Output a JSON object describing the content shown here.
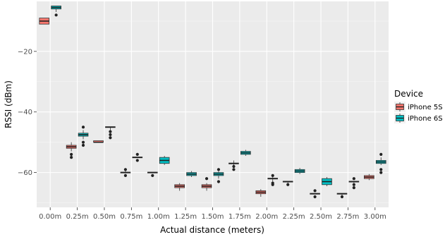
{
  "chart_data": {
    "type": "box",
    "xlabel": "Actual distance (meters)",
    "ylabel": "RSSI (dBm)",
    "categories": [
      "0.00m",
      "0.25m",
      "0.50m",
      "0.75m",
      "1.00m",
      "1.25m",
      "1.50m",
      "1.75m",
      "2.00m",
      "2.25m",
      "2.50m",
      "2.75m",
      "3.00m"
    ],
    "ylim": [
      -71.5,
      -3.5
    ],
    "yticks": [
      -20,
      -40,
      -60
    ],
    "ytick_labels": [
      "−20",
      "−40",
      "−60"
    ],
    "grid": true,
    "legend": {
      "title": "Device",
      "position": "right",
      "entries": [
        "iPhone 5S",
        "iPhone 6S"
      ]
    },
    "colors": {
      "iPhone 5S": "#F8766D",
      "iPhone 6S": "#00BFC4",
      "panel": "#EBEBEB",
      "grid_major": "#FFFFFF"
    },
    "series": [
      {
        "name": "iPhone 5S",
        "boxes": [
          {
            "q1": -11,
            "median": -10,
            "q3": -9,
            "whisker_low": -11,
            "whisker_high": -9,
            "outliers": []
          },
          {
            "q1": -52,
            "median": -51.5,
            "q3": -51,
            "whisker_low": -53,
            "whisker_high": -50,
            "outliers": [
              -54,
              -55
            ]
          },
          {
            "q1": -50,
            "median": -50,
            "q3": -49.5,
            "whisker_low": -50,
            "whisker_high": -49.5,
            "outliers": []
          },
          {
            "q1": -60,
            "median": -60,
            "q3": -60,
            "whisker_low": -60,
            "whisker_high": -59,
            "outliers": [
              -59,
              -61
            ]
          },
          {
            "q1": -60,
            "median": -60,
            "q3": -60,
            "whisker_low": -60,
            "whisker_high": -60,
            "outliers": [
              -61
            ]
          },
          {
            "q1": -65,
            "median": -64.5,
            "q3": -64,
            "whisker_low": -66,
            "whisker_high": -63.5,
            "outliers": []
          },
          {
            "q1": -65,
            "median": -64.5,
            "q3": -64,
            "whisker_low": -66,
            "whisker_high": -63.5,
            "outliers": [
              -62
            ]
          },
          {
            "q1": -57,
            "median": -57,
            "q3": -57,
            "whisker_low": -58,
            "whisker_high": -56,
            "outliers": [
              -58,
              -59
            ]
          },
          {
            "q1": -67,
            "median": -66.5,
            "q3": -66,
            "whisker_low": -68,
            "whisker_high": -65.5,
            "outliers": []
          },
          {
            "q1": -63,
            "median": -63,
            "q3": -63,
            "whisker_low": -64,
            "whisker_high": -63,
            "outliers": [
              -64
            ]
          },
          {
            "q1": -67,
            "median": -67,
            "q3": -67,
            "whisker_low": -67,
            "whisker_high": -67,
            "outliers": [
              -66,
              -68
            ]
          },
          {
            "q1": -67,
            "median": -67,
            "q3": -67,
            "whisker_low": -68,
            "whisker_high": -67,
            "outliers": [
              -68
            ]
          },
          {
            "q1": -62,
            "median": -61.5,
            "q3": -61,
            "whisker_low": -62.5,
            "whisker_high": -60.5,
            "outliers": []
          }
        ]
      },
      {
        "name": "iPhone 6S",
        "boxes": [
          {
            "q1": -6,
            "median": -5.5,
            "q3": -5,
            "whisker_low": -7,
            "whisker_high": -5,
            "outliers": [
              -8
            ]
          },
          {
            "q1": -48,
            "median": -47.5,
            "q3": -47,
            "whisker_low": -49,
            "whisker_high": -46,
            "outliers": [
              -45,
              -50,
              -51
            ]
          },
          {
            "q1": -45,
            "median": -45,
            "q3": -45,
            "whisker_low": -46,
            "whisker_high": -45,
            "outliers": [
              -46.5,
              -47.5,
              -48.5
            ]
          },
          {
            "q1": -55,
            "median": -55,
            "q3": -55,
            "whisker_low": -55,
            "whisker_high": -55,
            "outliers": [
              -54,
              -56
            ]
          },
          {
            "q1": -57,
            "median": -56,
            "q3": -55,
            "whisker_low": -57.5,
            "whisker_high": -54.5,
            "outliers": []
          },
          {
            "q1": -61,
            "median": -60.5,
            "q3": -60,
            "whisker_low": -61.5,
            "whisker_high": -59.5,
            "outliers": []
          },
          {
            "q1": -61,
            "median": -60.5,
            "q3": -60,
            "whisker_low": -62,
            "whisker_high": -59.5,
            "outliers": [
              -59,
              -63
            ]
          },
          {
            "q1": -54,
            "median": -53.5,
            "q3": -53,
            "whisker_low": -54.5,
            "whisker_high": -52.5,
            "outliers": []
          },
          {
            "q1": -62,
            "median": -62,
            "q3": -62,
            "whisker_low": -63,
            "whisker_high": -61.5,
            "outliers": [
              -61,
              -63.5,
              -64
            ]
          },
          {
            "q1": -60,
            "median": -59.5,
            "q3": -59,
            "whisker_low": -60.5,
            "whisker_high": -58.5,
            "outliers": []
          },
          {
            "q1": -64,
            "median": -63,
            "q3": -62,
            "whisker_low": -64.5,
            "whisker_high": -61.5,
            "outliers": []
          },
          {
            "q1": -63,
            "median": -63,
            "q3": -63,
            "whisker_low": -63.5,
            "whisker_high": -63,
            "outliers": [
              -62,
              -64,
              -65
            ]
          },
          {
            "q1": -57,
            "median": -56.5,
            "q3": -56,
            "whisker_low": -57.5,
            "whisker_high": -55,
            "outliers": [
              -54,
              -59,
              -60
            ]
          }
        ]
      }
    ]
  }
}
